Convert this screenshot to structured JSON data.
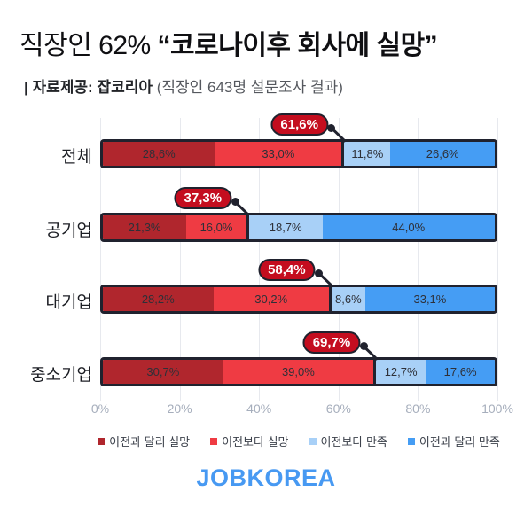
{
  "title": {
    "regular": "직장인 62% ",
    "bold": "“코로나이후 회사에 실망”"
  },
  "subtitle": {
    "bold": "| 자료제공: 잡코리아",
    "light": " (직장인 643명 설문조사 결과)"
  },
  "chart_data": {
    "type": "bar",
    "orientation": "horizontal",
    "stacked": true,
    "categories": [
      "전체",
      "공기업",
      "대기업",
      "중소기업"
    ],
    "series": [
      {
        "name": "이전과 달리 실망",
        "color": "#b0262d",
        "values": [
          28.6,
          21.3,
          28.2,
          30.7
        ]
      },
      {
        "name": "이전보다 실망",
        "color": "#ef3b43",
        "values": [
          33.0,
          16.0,
          30.2,
          39.0
        ]
      },
      {
        "name": "이전보다 만족",
        "color": "#a8d0f7",
        "values": [
          11.8,
          18.7,
          8.6,
          12.7
        ]
      },
      {
        "name": "이전과 달리 만족",
        "color": "#459df4",
        "values": [
          26.6,
          44.0,
          33.1,
          17.6
        ]
      }
    ],
    "segment_labels": [
      [
        "28,6%",
        "33,0%",
        "11,8%",
        "26,6%"
      ],
      [
        "21,3%",
        "16,0%",
        "18,7%",
        "44,0%"
      ],
      [
        "28,2%",
        "30,2%",
        "8,6%",
        "33,1%"
      ],
      [
        "30,7%",
        "39,0%",
        "12,7%",
        "17,6%"
      ]
    ],
    "callouts": {
      "values": [
        61.6,
        37.3,
        58.4,
        69.7
      ],
      "labels": [
        "61,6%",
        "37,3%",
        "58,4%",
        "69,7%"
      ]
    },
    "x_ticks": [
      "0%",
      "20%",
      "40%",
      "60%",
      "80%",
      "100%"
    ],
    "xlim": [
      0,
      100
    ],
    "grid": true,
    "legend_position": "bottom"
  },
  "footer": {
    "logo": "JOBKOREA"
  },
  "colors": {
    "badge_fill": "#c40d1f",
    "outline": "#20222e",
    "logo_blue": "#4799f2",
    "axis_text": "#a6aebc"
  }
}
